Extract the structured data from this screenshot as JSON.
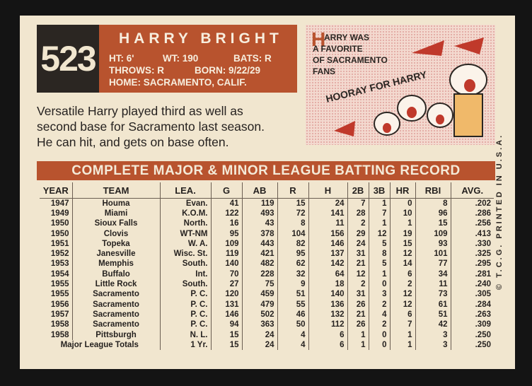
{
  "card": {
    "number": "523",
    "name": "HARRY BRIGHT",
    "bio": {
      "height": "HT: 6'",
      "weight": "WT: 190",
      "bats": "BATS: R",
      "throws": "THROWS: R",
      "born": "BORN: 9/22/29",
      "home": "HOME: SACRAMENTO, CALIF."
    },
    "cartoon": {
      "caption": [
        "ARRY WAS",
        "A FAVORITE",
        "OF SACRAMENTO",
        "FANS"
      ],
      "initial": "H",
      "cheer": "HOORAY FOR HARRY"
    },
    "blurb": [
      "Versatile Harry played third as well as",
      "second base for Sacramento last season.",
      "He can hit, and gets on base often."
    ],
    "record_title": "COMPLETE MAJOR & MINOR LEAGUE BATTING RECORD",
    "side_text": "© T.C.G. PRINTED IN U.S.A.",
    "table": {
      "headers": [
        "YEAR",
        "TEAM",
        "LEA.",
        "G",
        "AB",
        "R",
        "H",
        "2B",
        "3B",
        "HR",
        "RBI",
        "AVG."
      ],
      "rows": [
        [
          "1947",
          "Houma",
          "Evan.",
          "41",
          "119",
          "15",
          "24",
          "7",
          "1",
          "0",
          "8",
          ".202"
        ],
        [
          "1949",
          "Miami",
          "K.O.M.",
          "122",
          "493",
          "72",
          "141",
          "28",
          "7",
          "10",
          "96",
          ".286"
        ],
        [
          "1950",
          "Sioux Falls",
          "North.",
          "16",
          "43",
          "8",
          "11",
          "2",
          "1",
          "1",
          "15",
          ".256"
        ],
        [
          "1950",
          "Clovis",
          "WT-NM",
          "95",
          "378",
          "104",
          "156",
          "29",
          "12",
          "19",
          "109",
          ".413"
        ],
        [
          "1951",
          "Topeka",
          "W. A.",
          "109",
          "443",
          "82",
          "146",
          "24",
          "5",
          "15",
          "93",
          ".330"
        ],
        [
          "1952",
          "Janesville",
          "Wisc. St.",
          "119",
          "421",
          "95",
          "137",
          "31",
          "8",
          "12",
          "101",
          ".325"
        ],
        [
          "1953",
          "Memphis",
          "South.",
          "140",
          "482",
          "62",
          "142",
          "21",
          "5",
          "14",
          "77",
          ".295"
        ],
        [
          "1954",
          "Buffalo",
          "Int.",
          "70",
          "228",
          "32",
          "64",
          "12",
          "1",
          "6",
          "34",
          ".281"
        ],
        [
          "1955",
          "Little Rock",
          "South.",
          "27",
          "75",
          "9",
          "18",
          "2",
          "0",
          "2",
          "11",
          ".240"
        ],
        [
          "1955",
          "Sacramento",
          "P. C.",
          "120",
          "459",
          "51",
          "140",
          "31",
          "3",
          "12",
          "73",
          ".305"
        ],
        [
          "1956",
          "Sacramento",
          "P. C.",
          "131",
          "479",
          "55",
          "136",
          "26",
          "2",
          "12",
          "61",
          ".284"
        ],
        [
          "1957",
          "Sacramento",
          "P. C.",
          "146",
          "502",
          "46",
          "132",
          "21",
          "4",
          "6",
          "51",
          ".263"
        ],
        [
          "1958",
          "Sacramento",
          "P. C.",
          "94",
          "363",
          "50",
          "112",
          "26",
          "2",
          "7",
          "42",
          ".309"
        ],
        [
          "1958",
          "Pittsburgh",
          "N. L.",
          "15",
          "24",
          "4",
          "6",
          "1",
          "0",
          "1",
          "3",
          ".250"
        ]
      ],
      "totals": [
        "Major League Totals",
        "1 Yr.",
        "15",
        "24",
        "4",
        "6",
        "1",
        "0",
        "1",
        "3",
        ".250"
      ]
    }
  }
}
